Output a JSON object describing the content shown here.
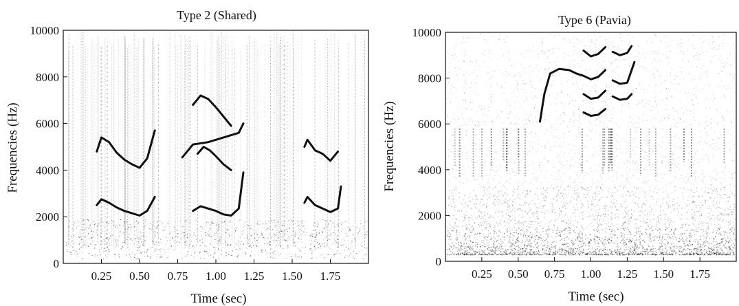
{
  "chart_data": [
    {
      "type": "spectrogram",
      "title": "Type 2 (Shared)",
      "xlabel": "Time (sec)",
      "ylabel": "Frequencies (Hz)",
      "xlim": [
        0,
        2.0
      ],
      "ylim": [
        0,
        10000
      ],
      "x_ticks": [
        0.25,
        0.5,
        0.75,
        1.0,
        1.25,
        1.5,
        1.75
      ],
      "x_tick_labels": [
        "0.25",
        "0.50",
        "0.75",
        "1.00",
        "1.25",
        "1.50",
        "1.75"
      ],
      "y_ticks": [
        0,
        2000,
        4000,
        6000,
        8000,
        10000
      ],
      "y_tick_labels": [
        "0",
        "2000",
        "4000",
        "6000",
        "8000",
        "10000"
      ],
      "grid": false,
      "colors": {
        "ink": "#111111"
      },
      "series": [
        {
          "x": [
            0.22,
            0.25,
            0.3,
            0.35,
            0.4,
            0.45,
            0.5,
            0.55,
            0.6
          ],
          "y": [
            2500,
            2750,
            2600,
            2400,
            2250,
            2150,
            2050,
            2250,
            2850
          ]
        },
        {
          "x": [
            0.22,
            0.25,
            0.3,
            0.35,
            0.4,
            0.45,
            0.5,
            0.55,
            0.6
          ],
          "y": [
            4800,
            5400,
            5200,
            4750,
            4450,
            4250,
            4100,
            4500,
            5700
          ]
        },
        {
          "x": [
            0.85,
            0.9,
            0.95,
            1.0,
            1.05,
            1.1,
            1.15,
            1.18
          ],
          "y": [
            2250,
            2450,
            2350,
            2250,
            2100,
            2050,
            2350,
            3900
          ]
        },
        {
          "x": [
            0.78,
            0.85,
            0.95,
            1.05,
            1.15,
            1.18
          ],
          "y": [
            4550,
            5100,
            5200,
            5400,
            5600,
            6000
          ]
        },
        {
          "x": [
            0.88,
            0.92,
            0.96,
            1.0,
            1.05,
            1.1
          ],
          "y": [
            4700,
            5000,
            4850,
            4600,
            4250,
            4000
          ]
        },
        {
          "x": [
            0.85,
            0.9,
            0.95,
            1.0,
            1.05,
            1.1
          ],
          "y": [
            6800,
            7200,
            7050,
            6700,
            6300,
            5900
          ]
        },
        {
          "x": [
            1.58,
            1.6,
            1.65,
            1.7,
            1.75,
            1.8,
            1.82
          ],
          "y": [
            2600,
            2850,
            2500,
            2350,
            2200,
            2350,
            3300
          ]
        },
        {
          "x": [
            1.58,
            1.6,
            1.65,
            1.7,
            1.75,
            1.8
          ],
          "y": [
            5000,
            5300,
            4850,
            4700,
            4400,
            4800
          ]
        }
      ]
    },
    {
      "type": "spectrogram",
      "title": "Type 6 (Pavia)",
      "xlabel": "Time (sec)",
      "ylabel": "Frequencies (Hz)",
      "xlim": [
        0,
        2.0
      ],
      "ylim": [
        0,
        10000
      ],
      "x_ticks": [
        0.25,
        0.5,
        0.75,
        1.0,
        1.25,
        1.5,
        1.75
      ],
      "x_tick_labels": [
        "0.25",
        "0.50",
        "0.75",
        "1.00",
        "1.25",
        "1.50",
        "1.75"
      ],
      "y_ticks": [
        0,
        2000,
        4000,
        6000,
        8000,
        10000
      ],
      "y_tick_labels": [
        "0",
        "2000",
        "4000",
        "6000",
        "8000",
        "10000"
      ],
      "grid": false,
      "colors": {
        "ink": "#111111"
      },
      "series": [
        {
          "x": [
            0.65,
            0.68,
            0.72,
            0.78,
            0.85,
            0.9,
            0.95,
            1.0,
            1.05,
            1.1
          ],
          "y": [
            6100,
            7300,
            8200,
            8400,
            8350,
            8200,
            8100,
            7950,
            8050,
            8350
          ]
        },
        {
          "x": [
            1.15,
            1.2,
            1.25,
            1.3
          ],
          "y": [
            7900,
            7750,
            7800,
            8700
          ]
        },
        {
          "x": [
            0.95,
            1.0,
            1.05,
            1.1
          ],
          "y": [
            9200,
            8950,
            9050,
            9350
          ]
        },
        {
          "x": [
            0.95,
            1.0,
            1.05,
            1.1
          ],
          "y": [
            7300,
            7100,
            7150,
            7450
          ]
        },
        {
          "x": [
            0.95,
            1.0,
            1.05,
            1.1
          ],
          "y": [
            6500,
            6350,
            6400,
            6650
          ]
        },
        {
          "x": [
            1.15,
            1.2,
            1.25,
            1.28
          ],
          "y": [
            9150,
            9000,
            9100,
            9400
          ]
        },
        {
          "x": [
            1.15,
            1.2,
            1.25,
            1.28
          ],
          "y": [
            7200,
            7050,
            7100,
            7300
          ]
        }
      ]
    }
  ]
}
